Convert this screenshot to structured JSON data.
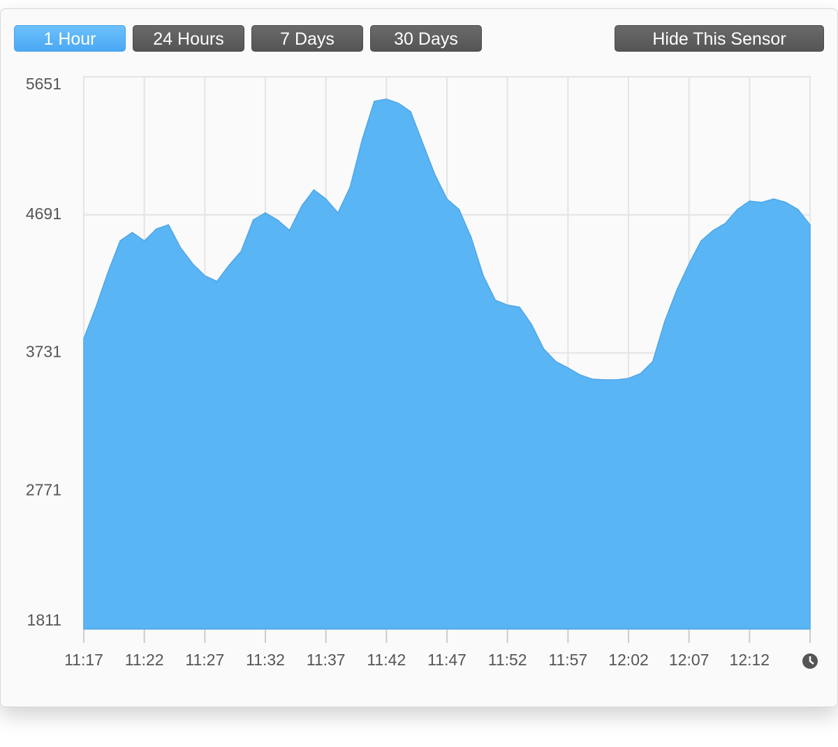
{
  "buttons": [
    "1 Hour",
    "24 Hours",
    "7 Days",
    "30 Days"
  ],
  "hide_button": "Hide This Sensor",
  "chart_data": {
    "type": "area",
    "x": [
      0,
      1,
      2,
      3,
      4,
      5,
      6,
      7,
      8,
      9,
      10,
      11,
      12,
      13,
      14,
      15,
      16,
      17,
      18,
      19,
      20,
      21,
      22,
      23,
      24,
      25,
      26,
      27,
      28,
      29,
      30,
      31,
      32,
      33,
      34,
      35,
      36,
      37,
      38,
      39,
      40,
      41,
      42,
      43,
      44,
      45,
      46,
      47,
      48,
      49,
      50,
      51,
      52,
      53,
      54,
      55,
      56,
      57,
      58,
      59,
      60
    ],
    "values": [
      3831,
      4049,
      4292,
      4510,
      4569,
      4510,
      4593,
      4622,
      4462,
      4350,
      4268,
      4229,
      4341,
      4438,
      4656,
      4705,
      4656,
      4583,
      4753,
      4865,
      4802,
      4705,
      4884,
      5214,
      5481,
      5496,
      5467,
      5409,
      5190,
      4972,
      4802,
      4729,
      4535,
      4268,
      4098,
      4064,
      4049,
      3928,
      3758,
      3671,
      3627,
      3578,
      3549,
      3544,
      3544,
      3554,
      3588,
      3671,
      3952,
      4170,
      4350,
      4510,
      4583,
      4632,
      4729,
      4787,
      4778,
      4802,
      4778,
      4729,
      4622
    ],
    "color": "#5ab5f5",
    "xlim": [
      0,
      60
    ],
    "xticks": [
      {
        "value": 0,
        "label": "11:17"
      },
      {
        "value": 5,
        "label": "11:22"
      },
      {
        "value": 10,
        "label": "11:27"
      },
      {
        "value": 15,
        "label": "11:32"
      },
      {
        "value": 20,
        "label": "11:37"
      },
      {
        "value": 25,
        "label": "11:42"
      },
      {
        "value": 30,
        "label": "11:47"
      },
      {
        "value": 35,
        "label": "11:52"
      },
      {
        "value": 40,
        "label": "11:57"
      },
      {
        "value": 45,
        "label": "12:02"
      },
      {
        "value": 50,
        "label": "12:07"
      },
      {
        "value": 55,
        "label": "12:12"
      }
    ],
    "ylim": [
      1811,
      5651
    ],
    "yticks": [
      1811,
      2771,
      3731,
      4691,
      5651
    ],
    "grid": true
  }
}
